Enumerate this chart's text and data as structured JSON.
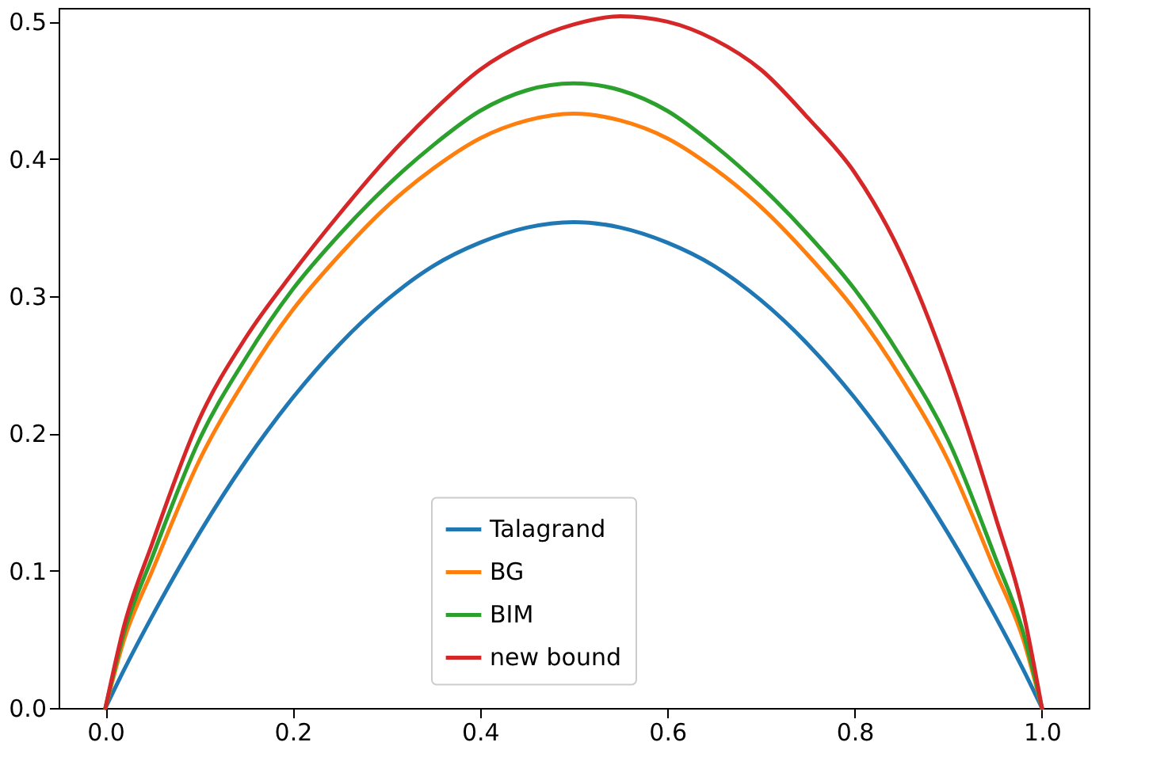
{
  "chart_data": {
    "type": "line",
    "x": [
      0,
      0.02,
      0.05,
      0.1,
      0.15,
      0.2,
      0.25,
      0.3,
      0.35,
      0.4,
      0.45,
      0.5,
      0.55,
      0.6,
      0.65,
      0.7,
      0.75,
      0.8,
      0.85,
      0.9,
      0.95,
      0.98,
      1.0
    ],
    "series": [
      {
        "name": "Talagrand",
        "color": "#1f77b4",
        "values": [
          0,
          0.028,
          0.067,
          0.127,
          0.18,
          0.226,
          0.265,
          0.297,
          0.322,
          0.339,
          0.35,
          0.354,
          0.35,
          0.339,
          0.322,
          0.297,
          0.265,
          0.226,
          0.18,
          0.127,
          0.067,
          0.028,
          0
        ]
      },
      {
        "name": "BG",
        "color": "#ff7f0e",
        "values": [
          0,
          0.05,
          0.1,
          0.18,
          0.24,
          0.29,
          0.33,
          0.365,
          0.393,
          0.415,
          0.428,
          0.433,
          0.428,
          0.415,
          0.393,
          0.365,
          0.33,
          0.29,
          0.24,
          0.18,
          0.1,
          0.05,
          0
        ]
      },
      {
        "name": "BIM",
        "color": "#2ca02c",
        "values": [
          0,
          0.055,
          0.11,
          0.195,
          0.255,
          0.305,
          0.345,
          0.38,
          0.41,
          0.435,
          0.45,
          0.455,
          0.45,
          0.435,
          0.41,
          0.38,
          0.345,
          0.305,
          0.255,
          0.195,
          0.11,
          0.055,
          0
        ]
      },
      {
        "name": "new bound",
        "color": "#d62728",
        "values": [
          0,
          0.06,
          0.12,
          0.21,
          0.27,
          0.317,
          0.36,
          0.4,
          0.435,
          0.465,
          0.485,
          0.498,
          0.504,
          0.5,
          0.487,
          0.465,
          0.43,
          0.39,
          0.33,
          0.245,
          0.14,
          0.07,
          0
        ]
      }
    ],
    "xlim": [
      -0.05,
      1.05
    ],
    "xticks": [
      {
        "value": 0,
        "label": "0.0"
      },
      0.2,
      0.4,
      0.6,
      0.8,
      {
        "value": 1,
        "label": "1.0"
      }
    ],
    "ylim": [
      0,
      0.51
    ],
    "yticks": [
      {
        "value": 0,
        "label": "0.0"
      },
      0.1,
      0.2,
      0.3,
      0.4,
      0.5
    ],
    "legend": "bottom",
    "grid": false,
    "line_style": "solid"
  }
}
